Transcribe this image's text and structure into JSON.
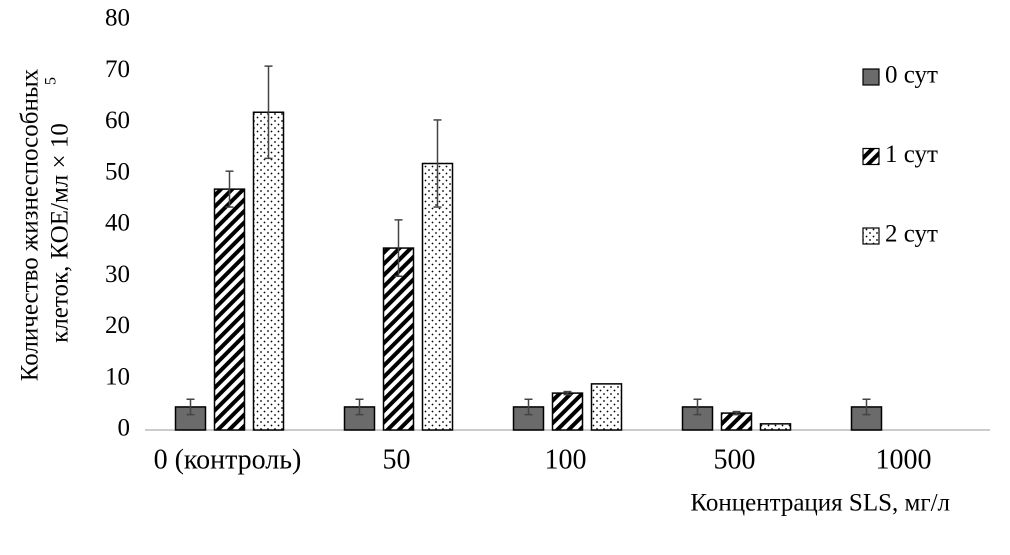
{
  "chart_data": {
    "type": "bar",
    "x_label": "Концентрация SLS, мг/л",
    "y_label": {
      "lines": [
        "Количество жизнеспособных",
        "клеток, КОЕ/мл × 10"
      ],
      "superscript": "5"
    },
    "categories": [
      "0 (контроль)",
      "50",
      "100",
      "500",
      "1000"
    ],
    "series": [
      {
        "name": "0 сут",
        "color": "#6b6b6b",
        "pattern": "solid",
        "values": [
          4.5,
          4.5,
          4.5,
          4.5,
          4.5
        ],
        "errors": [
          1.5,
          1.5,
          1.5,
          1.5,
          1.5
        ]
      },
      {
        "name": "1 сут",
        "color": "#000000",
        "pattern": "hatch",
        "values": [
          47,
          35.5,
          7.2,
          3.3,
          null
        ],
        "errors": [
          3.5,
          5.5,
          0.3,
          0.3,
          null
        ]
      },
      {
        "name": "2 сут",
        "color": "#000000",
        "pattern": "dots",
        "values": [
          62,
          52,
          9,
          1.2,
          null
        ],
        "errors": [
          9,
          8.5,
          null,
          null,
          null
        ]
      }
    ],
    "ylim": [
      0,
      80
    ],
    "yticks": [
      0,
      10,
      20,
      30,
      40,
      50,
      60,
      70,
      80
    ],
    "grid": false,
    "legend": "right"
  }
}
